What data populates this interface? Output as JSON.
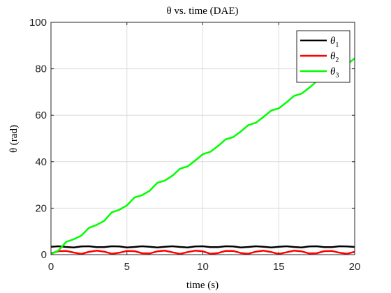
{
  "chart_data": {
    "type": "line",
    "title": "θ vs. time (DAE)",
    "xlabel": "time (s)",
    "ylabel": "θ (rad)",
    "xlim": [
      0,
      20
    ],
    "ylim": [
      0,
      100
    ],
    "xticks": [
      "0",
      "5",
      "10",
      "15",
      "20"
    ],
    "yticks": [
      "0",
      "20",
      "40",
      "60",
      "80",
      "100"
    ],
    "grid": true,
    "legend_position": "top-right",
    "series": [
      {
        "name": "θ1",
        "legend_symbol": "θ",
        "legend_sub": "1",
        "color": "#000000",
        "x": [
          0,
          0.5,
          1,
          1.5,
          2,
          2.5,
          3,
          3.5,
          4,
          4.5,
          5,
          5.5,
          6,
          6.5,
          7,
          7.5,
          8,
          8.5,
          9,
          9.5,
          10,
          10.5,
          11,
          11.5,
          12,
          12.5,
          13,
          13.5,
          14,
          14.5,
          15,
          15.5,
          16,
          16.5,
          17,
          17.5,
          18,
          18.5,
          19,
          19.5,
          20
        ],
        "y": [
          3.4,
          3.6,
          3.3,
          3.1,
          3.5,
          3.6,
          3.2,
          3.2,
          3.6,
          3.5,
          3.1,
          3.3,
          3.6,
          3.4,
          3.1,
          3.4,
          3.6,
          3.3,
          3.1,
          3.5,
          3.6,
          3.2,
          3.2,
          3.6,
          3.5,
          3.1,
          3.3,
          3.6,
          3.4,
          3.1,
          3.4,
          3.6,
          3.3,
          3.1,
          3.5,
          3.6,
          3.2,
          3.2,
          3.6,
          3.5,
          3.3
        ]
      },
      {
        "name": "θ2",
        "legend_symbol": "θ",
        "legend_sub": "2",
        "color": "#ff0000",
        "x": [
          0,
          0.5,
          1,
          1.5,
          2,
          2.5,
          3,
          3.5,
          4,
          4.5,
          5,
          5.5,
          6,
          6.5,
          7,
          7.5,
          8,
          8.5,
          9,
          9.5,
          10,
          10.5,
          11,
          11.5,
          12,
          12.5,
          13,
          13.5,
          14,
          14.5,
          15,
          15.5,
          16,
          16.5,
          17,
          17.5,
          18,
          18.5,
          19,
          19.5,
          20
        ],
        "y": [
          0.5,
          1.5,
          1.6,
          0.9,
          0.3,
          1.2,
          1.7,
          1.3,
          0.4,
          0.8,
          1.6,
          1.5,
          0.6,
          0.5,
          1.4,
          1.7,
          1.0,
          0.3,
          1.1,
          1.7,
          1.4,
          0.4,
          0.7,
          1.6,
          1.6,
          0.7,
          0.4,
          1.3,
          1.7,
          1.1,
          0.3,
          1.0,
          1.7,
          1.4,
          0.5,
          0.6,
          1.5,
          1.6,
          0.8,
          0.4,
          1.2
        ]
      },
      {
        "name": "θ3",
        "legend_symbol": "θ",
        "legend_sub": "3",
        "color": "#00ff00",
        "x": [
          0,
          0.5,
          1,
          1.5,
          2,
          2.5,
          3,
          3.5,
          4,
          4.5,
          5,
          5.5,
          6,
          6.5,
          7,
          7.5,
          8,
          8.5,
          9,
          9.5,
          10,
          10.5,
          11,
          11.5,
          12,
          12.5,
          13,
          13.5,
          14,
          14.5,
          15,
          15.5,
          16,
          16.5,
          17,
          17.5,
          18,
          18.5,
          19,
          19.5,
          20
        ],
        "y": [
          0.2,
          1.8,
          5.5,
          6.6,
          8.2,
          11.5,
          12.8,
          14.5,
          18.2,
          19.3,
          21.2,
          24.6,
          25.6,
          27.5,
          30.9,
          31.9,
          34.0,
          37.0,
          38.0,
          40.5,
          43.2,
          44.3,
          46.8,
          49.6,
          50.6,
          53.0,
          55.8,
          56.8,
          59.3,
          62.0,
          63.0,
          65.5,
          68.3,
          69.3,
          71.8,
          74.6,
          75.6,
          78.0,
          80.9,
          81.9,
          84.5
        ]
      }
    ]
  }
}
